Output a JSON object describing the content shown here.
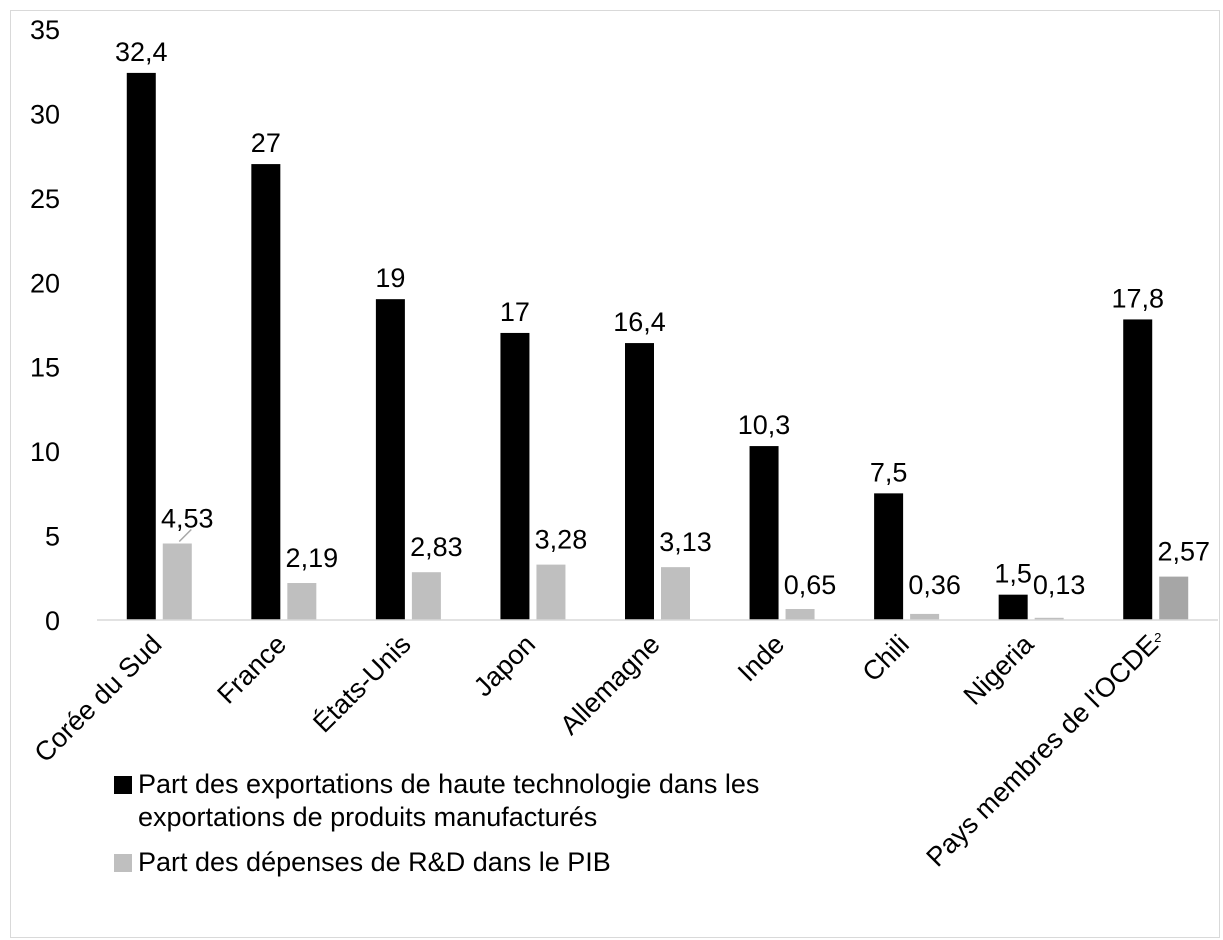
{
  "chart_data": {
    "type": "bar",
    "title": "",
    "xlabel": "",
    "ylabel": "",
    "ylim": [
      0,
      35
    ],
    "yticks": [
      0,
      5,
      10,
      15,
      20,
      25,
      30,
      35
    ],
    "grid": false,
    "legend_position": "bottom-left",
    "categories": [
      "Corée du Sud",
      "France",
      "États-Unis",
      "Japon",
      "Allemagne",
      "Inde",
      "Chili",
      "Nigeria",
      "Pays membres de l'OCDE"
    ],
    "footnote_marker": {
      "category_index": 8,
      "text": "2"
    },
    "series": [
      {
        "name": "Part des exportations de haute technologie dans les exportations de produits manufacturés",
        "color": "#000000",
        "values": [
          32.4,
          27,
          19,
          17,
          16.4,
          10.3,
          7.5,
          1.5,
          17.8
        ],
        "labels": [
          "32,4",
          "27",
          "19",
          "17",
          "16,4",
          "10,3",
          "7,5",
          "1,5",
          "17,8"
        ]
      },
      {
        "name": "Part des dépenses de R&D dans le PIB",
        "color": "#bfbfbf",
        "highlight_color": "#a6a6a6",
        "highlight_index": 8,
        "values": [
          4.53,
          2.19,
          2.83,
          3.28,
          3.13,
          0.65,
          0.36,
          0.13,
          2.57
        ],
        "labels": [
          "4,53",
          "2,19",
          "2,83",
          "3,28",
          "3,13",
          "0,65",
          "0,36",
          "0,13",
          "2,57"
        ]
      }
    ]
  }
}
